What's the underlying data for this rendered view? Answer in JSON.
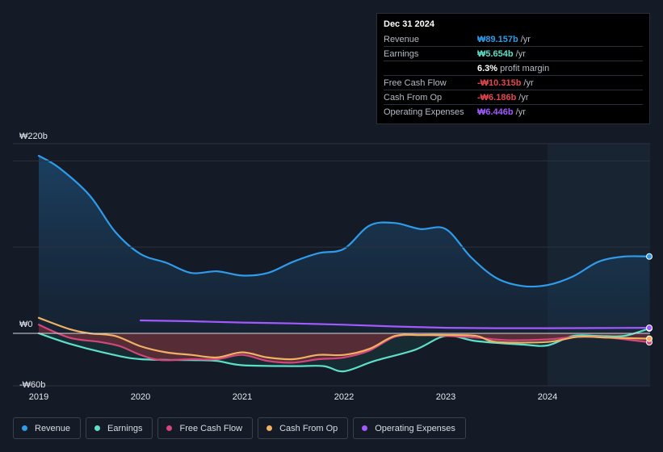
{
  "tooltip": {
    "date": "Dec 31 2024",
    "rows": [
      {
        "label": "Revenue",
        "value": "₩89.157b",
        "unit": "/yr",
        "color": "#2f9bea"
      },
      {
        "label": "Earnings",
        "value": "₩5.654b",
        "unit": "/yr",
        "color": "#5ee0c8"
      },
      {
        "label": "",
        "value": "6.3%",
        "unit": "profit margin",
        "color": "#ffffff"
      },
      {
        "label": "Free Cash Flow",
        "value": "-₩10.315b",
        "unit": "/yr",
        "color": "#e5474e"
      },
      {
        "label": "Cash From Op",
        "value": "-₩6.186b",
        "unit": "/yr",
        "color": "#e5474e"
      },
      {
        "label": "Operating Expenses",
        "value": "₩6.446b",
        "unit": "/yr",
        "color": "#a259ff"
      }
    ]
  },
  "legend": [
    {
      "label": "Revenue",
      "color": "#2f9bea"
    },
    {
      "label": "Earnings",
      "color": "#5ee0c8"
    },
    {
      "label": "Free Cash Flow",
      "color": "#d6457c"
    },
    {
      "label": "Cash From Op",
      "color": "#f0b162"
    },
    {
      "label": "Operating Expenses",
      "color": "#a259ff"
    }
  ],
  "chart_data": {
    "type": "area",
    "currency": "KRW",
    "y_unit": "billions",
    "ylim": [
      -60,
      220
    ],
    "y_tick_labels": [
      "₩220b",
      "₩0",
      "-₩60b"
    ],
    "y_ticks": [
      220,
      0,
      -60
    ],
    "x_tick_labels": [
      "2019",
      "2020",
      "2021",
      "2022",
      "2023",
      "2024"
    ],
    "x_ticks": [
      2019.0,
      2020.0,
      2021.0,
      2022.0,
      2023.0,
      2024.0
    ],
    "xlim": [
      2018.75,
      2025.0
    ],
    "past_data_start": 2024.0,
    "series": [
      {
        "name": "Revenue",
        "color": "#2f9bea",
        "fill": true,
        "x": [
          2019.0,
          2019.2,
          2019.5,
          2019.75,
          2020.0,
          2020.25,
          2020.5,
          2020.75,
          2021.0,
          2021.25,
          2021.5,
          2021.75,
          2022.0,
          2022.25,
          2022.5,
          2022.75,
          2023.0,
          2023.25,
          2023.5,
          2023.75,
          2024.0,
          2024.25,
          2024.5,
          2024.75,
          2025.0
        ],
        "values": [
          206,
          192,
          160,
          118,
          92,
          82,
          70,
          72,
          67,
          70,
          83,
          93,
          98,
          125,
          128,
          121,
          121,
          88,
          64,
          55,
          56,
          66,
          83,
          89,
          89.157
        ]
      },
      {
        "name": "Earnings",
        "color": "#5ee0c8",
        "x": [
          2019.0,
          2019.3,
          2019.7,
          2020.0,
          2020.5,
          2020.75,
          2021.0,
          2021.5,
          2021.8,
          2022.0,
          2022.3,
          2022.7,
          2023.0,
          2023.3,
          2023.75,
          2024.0,
          2024.25,
          2024.5,
          2024.75,
          2025.0
        ],
        "values": [
          0,
          -12,
          -24,
          -30,
          -31,
          -32,
          -37,
          -38,
          -38,
          -44,
          -32,
          -19,
          -3,
          -9,
          -13,
          -14,
          -3,
          -3,
          -3,
          5.654
        ]
      },
      {
        "name": "Free Cash Flow",
        "color": "#d6457c",
        "fill": true,
        "x": [
          2019.0,
          2019.3,
          2019.6,
          2019.8,
          2020.0,
          2020.2,
          2020.5,
          2020.75,
          2021.0,
          2021.25,
          2021.5,
          2021.75,
          2022.0,
          2022.25,
          2022.5,
          2022.75,
          2023.0,
          2023.3,
          2023.6,
          2024.0,
          2024.3,
          2024.6,
          2025.0
        ],
        "values": [
          10,
          -5,
          -10,
          -15,
          -25,
          -31,
          -30,
          -30,
          -25,
          -32,
          -34,
          -30,
          -28,
          -20,
          -4,
          -2,
          -3,
          -5,
          -8,
          -7,
          -4,
          -5,
          -10.315
        ]
      },
      {
        "name": "Cash From Op",
        "color": "#f0b162",
        "x": [
          2019.0,
          2019.3,
          2019.5,
          2019.75,
          2020.0,
          2020.25,
          2020.5,
          2020.75,
          2021.0,
          2021.25,
          2021.5,
          2021.75,
          2022.0,
          2022.25,
          2022.5,
          2022.75,
          2023.0,
          2023.3,
          2023.5,
          2024.0,
          2024.3,
          2024.6,
          2025.0
        ],
        "values": [
          18,
          5,
          0,
          -3,
          -15,
          -22,
          -25,
          -28,
          -22,
          -28,
          -30,
          -25,
          -25,
          -18,
          -3,
          -2,
          -2,
          -3,
          -10,
          -10,
          -4,
          -5,
          -6.186
        ]
      },
      {
        "name": "Operating Expenses",
        "color": "#a259ff",
        "x": [
          2020.0,
          2020.5,
          2021.0,
          2021.5,
          2022.0,
          2022.5,
          2023.0,
          2023.5,
          2024.0,
          2024.5,
          2025.0
        ],
        "values": [
          15,
          14,
          12.5,
          11.5,
          10,
          8,
          6.5,
          6,
          6,
          6.2,
          6.446
        ]
      }
    ]
  }
}
